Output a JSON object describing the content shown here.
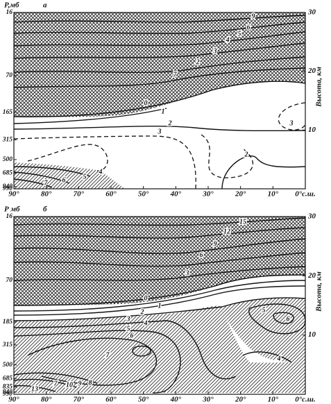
{
  "chart_data": [
    {
      "type": "contour",
      "ylabel": "Р,мб",
      "panel_label": "а",
      "y2label": "Высота, км",
      "xlim": [
        90,
        0
      ],
      "xticks": [
        {
          "value": 90,
          "label": "90°"
        },
        {
          "value": 80,
          "label": "80°"
        },
        {
          "value": 70,
          "label": "70°"
        },
        {
          "value": 60,
          "label": "60°"
        },
        {
          "value": 50,
          "label": "50°"
        },
        {
          "value": 40,
          "label": "40°"
        },
        {
          "value": 30,
          "label": "30°"
        },
        {
          "value": 20,
          "label": "20°"
        },
        {
          "value": 10,
          "label": "10°"
        },
        {
          "value": 0,
          "label": "0°с.ш."
        }
      ],
      "ylim": [
        990,
        16
      ],
      "ylog": true,
      "yticks": [
        16,
        70,
        165,
        315,
        500,
        685,
        940,
        990
      ],
      "y2lim": [
        0,
        30
      ],
      "y2ticks": [
        10,
        20,
        30
      ],
      "contour_labels": [
        9,
        6,
        5,
        4,
        3,
        2,
        7,
        0,
        1,
        2,
        3,
        3,
        2,
        4,
        5,
        6,
        7
      ]
    },
    {
      "type": "contour",
      "ylabel": "Р мб",
      "panel_label": "б",
      "y2label": "Высота, км",
      "xlim": [
        90,
        0
      ],
      "xticks": [
        {
          "value": 90,
          "label": "90°"
        },
        {
          "value": 80,
          "label": "80°"
        },
        {
          "value": 70,
          "label": "70°"
        },
        {
          "value": 60,
          "label": "60°"
        },
        {
          "value": 50,
          "label": "50°"
        },
        {
          "value": 40,
          "label": "40°"
        },
        {
          "value": 30,
          "label": "30°"
        },
        {
          "value": 20,
          "label": "20°"
        },
        {
          "value": 10,
          "label": "10°"
        },
        {
          "value": 0,
          "label": "0°с.ш."
        }
      ],
      "ylim": [
        990,
        16
      ],
      "ylog": true,
      "yticks": [
        16,
        70,
        185,
        315,
        500,
        685,
        835,
        940,
        990
      ],
      "y2lim": [
        0,
        30
      ],
      "y2ticks": [
        10,
        20,
        30
      ],
      "contour_labels": [
        15,
        12,
        9,
        6,
        3,
        0,
        1,
        2,
        3,
        4,
        5,
        6,
        7,
        5,
        6,
        4,
        10,
        9,
        8,
        7,
        13
      ]
    }
  ]
}
